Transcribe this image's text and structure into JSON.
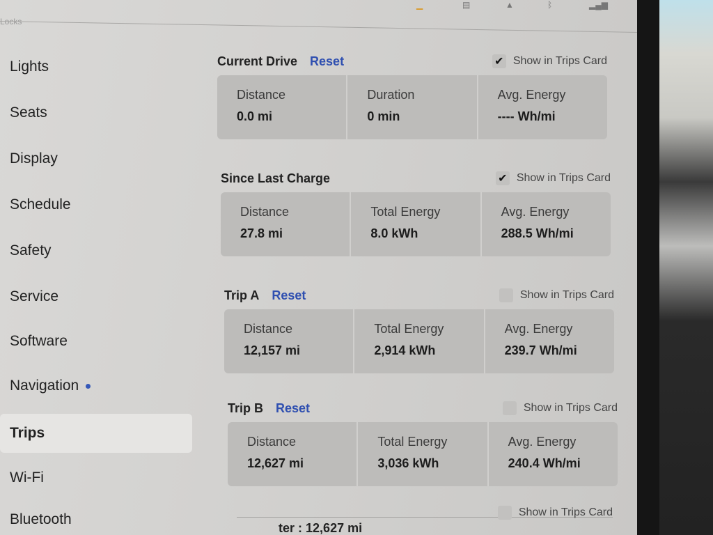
{
  "status_icons": [
    "download-icon",
    "document-icon",
    "bell-icon",
    "bluetooth-icon",
    "signal-icon"
  ],
  "header_partial": "Locks",
  "sidebar": {
    "items": [
      {
        "label": "Lights"
      },
      {
        "label": "Seats"
      },
      {
        "label": "Display"
      },
      {
        "label": "Schedule"
      },
      {
        "label": "Safety"
      },
      {
        "label": "Service"
      },
      {
        "label": "Software"
      },
      {
        "label": "Navigation",
        "dot": true
      },
      {
        "label": "Trips",
        "active": true
      },
      {
        "label": "Wi-Fi"
      },
      {
        "label": "Bluetooth"
      }
    ]
  },
  "show_label": "Show in Trips Card",
  "reset_label": "Reset",
  "sections": [
    {
      "title": "Current Drive",
      "reset": true,
      "show_checked": true,
      "cells": [
        {
          "label": "Distance",
          "value": "0.0 mi"
        },
        {
          "label": "Duration",
          "value": "0 min"
        },
        {
          "label": "Avg. Energy",
          "value": "---- Wh/mi"
        }
      ]
    },
    {
      "title": "Since Last Charge",
      "reset": false,
      "show_checked": true,
      "cells": [
        {
          "label": "Distance",
          "value": "27.8 mi"
        },
        {
          "label": "Total Energy",
          "value": "8.0 kWh"
        },
        {
          "label": "Avg. Energy",
          "value": "288.5 Wh/mi"
        }
      ]
    },
    {
      "title": "Trip A",
      "reset": true,
      "show_checked": false,
      "cells": [
        {
          "label": "Distance",
          "value": "12,157 mi"
        },
        {
          "label": "Total Energy",
          "value": "2,914 kWh"
        },
        {
          "label": "Avg. Energy",
          "value": "239.7 Wh/mi"
        }
      ]
    },
    {
      "title": "Trip B",
      "reset": true,
      "show_checked": false,
      "cells": [
        {
          "label": "Distance",
          "value": "12,627 mi"
        },
        {
          "label": "Total Energy",
          "value": "3,036 kWh"
        },
        {
          "label": "Avg. Energy",
          "value": "240.4 Wh/mi"
        }
      ]
    }
  ],
  "odometer": {
    "label_partial": "ter :",
    "value": "12,627 mi",
    "show_checked": false
  },
  "colors": {
    "accent": "#2f4fb0",
    "card": "#bdbcba",
    "screen": "#d6d5d3"
  }
}
